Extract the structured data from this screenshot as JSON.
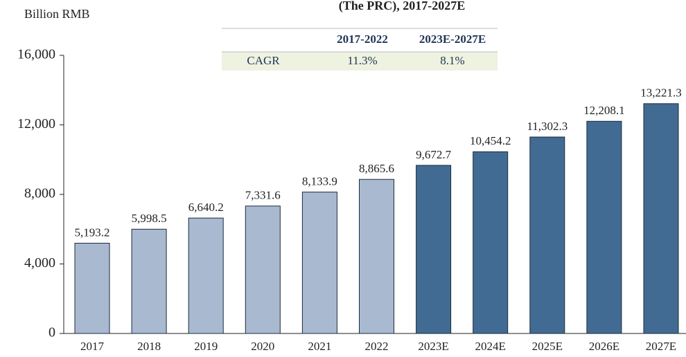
{
  "chart_data": {
    "type": "bar",
    "title": "(The PRC), 2017-2027E",
    "y_label": "Billion RMB",
    "categories": [
      "2017",
      "2018",
      "2019",
      "2020",
      "2021",
      "2022",
      "2023E",
      "2024E",
      "2025E",
      "2026E",
      "2027E"
    ],
    "values": [
      5193.2,
      5998.5,
      6640.2,
      7331.6,
      8133.9,
      8865.6,
      9672.7,
      10454.2,
      11302.3,
      12208.1,
      13221.3
    ],
    "value_labels": [
      "5,193.2",
      "5,998.5",
      "6,640.2",
      "7,331.6",
      "8,133.9",
      "8,865.6",
      "9,672.7",
      "10,454.2",
      "11,302.3",
      "12,208.1",
      "13,221.3"
    ],
    "colors": [
      "#a9bad0",
      "#a9bad0",
      "#a9bad0",
      "#a9bad0",
      "#a9bad0",
      "#a9bad0",
      "#426b93",
      "#426b93",
      "#426b93",
      "#426b93",
      "#426b93"
    ],
    "ylim": [
      0,
      16000
    ],
    "yticks": [
      0,
      {
        "value": 4000,
        "label": "4,000"
      },
      {
        "value": 8000,
        "label": "8,000"
      },
      {
        "value": 12000,
        "label": "12,000"
      },
      {
        "value": 16000,
        "label": "16,000"
      }
    ],
    "table": {
      "header": [
        "2017-2022",
        "2023E-2027E"
      ],
      "rows": [
        [
          "CAGR",
          "11.3%",
          "8.1%"
        ]
      ]
    }
  }
}
